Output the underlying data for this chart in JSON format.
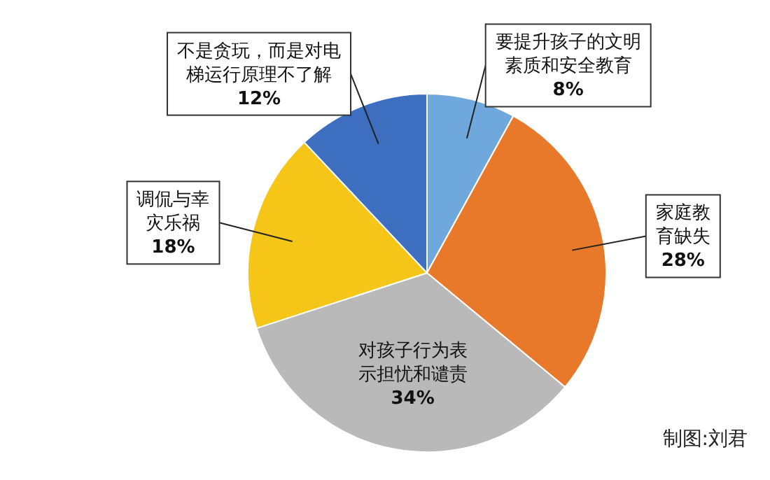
{
  "chart_data": {
    "type": "pie",
    "categories": [
      "要提升孩子的文明素质和安全教育",
      "家庭教育缺失",
      "对孩子行为表示担忧和谴责",
      "调侃与幸灾乐祸",
      "不是贪玩，而是对电梯运行原理不了解"
    ],
    "values": [
      8,
      28,
      34,
      18,
      12
    ],
    "value_labels": [
      "8%",
      "28%",
      "34%",
      "18%",
      "12%"
    ],
    "colors": [
      "#6fa8dc",
      "#e8792a",
      "#b9b9b9",
      "#f5c518",
      "#3d6ec0"
    ],
    "annotations": [
      "制图:刘君"
    ]
  }
}
